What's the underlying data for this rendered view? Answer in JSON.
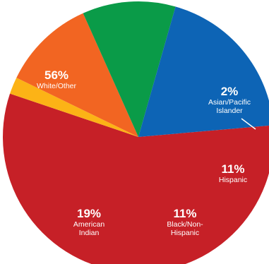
{
  "chart_data": {
    "type": "pie",
    "slices": [
      {
        "pct_label": "56%",
        "label_lines": [
          "White/Other"
        ],
        "value": 56,
        "color": "#c62027"
      },
      {
        "pct_label": "2%",
        "label_lines": [
          "Asian/Pacific",
          "Islander"
        ],
        "value": 2,
        "color": "#fcb316"
      },
      {
        "pct_label": "11%",
        "label_lines": [
          "Hispanic"
        ],
        "value": 11,
        "color": "#f26522"
      },
      {
        "pct_label": "11%",
        "label_lines": [
          "Black/Non-",
          "Hispanic"
        ],
        "value": 11,
        "color": "#0a9b48"
      },
      {
        "pct_label": "19%",
        "label_lines": [
          "American",
          "Indian"
        ],
        "value": 19,
        "color": "#0d64b5"
      }
    ]
  }
}
